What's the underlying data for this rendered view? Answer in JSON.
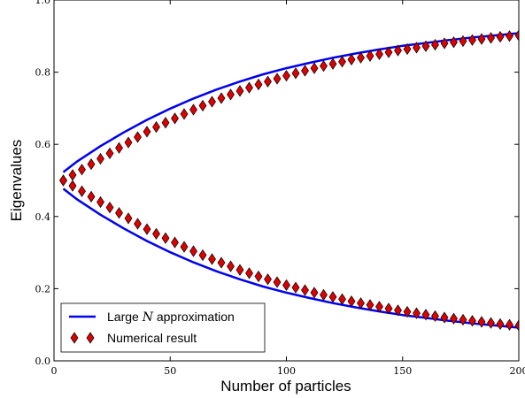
{
  "chart_data": {
    "type": "scatter",
    "title": "",
    "xlabel": "Number of particles",
    "ylabel": "Eigenvalues",
    "xlim": [
      0,
      200
    ],
    "ylim": [
      0.0,
      1.0
    ],
    "x_ticks": [
      "0",
      "50",
      "100",
      "150",
      "200"
    ],
    "y_ticks": [
      "0.0",
      "0.2",
      "0.4",
      "0.6",
      "0.8",
      "1.0"
    ],
    "grid": false,
    "legend_position": "lower-left",
    "legend": {
      "approx_prefix": "Large ",
      "approx_var": "N",
      "approx_suffix": " approximation",
      "numeric": "Numerical result"
    },
    "colors": {
      "line": "#0000ee",
      "marker_fill": "#dd0000",
      "marker_edge": "#000000"
    },
    "series": [
      {
        "name": "Large N approximation (upper)",
        "kind": "line",
        "x": [
          4,
          10,
          20,
          30,
          40,
          50,
          60,
          70,
          80,
          90,
          100,
          110,
          120,
          130,
          140,
          150,
          160,
          170,
          180,
          190,
          200
        ],
        "y": [
          0.523,
          0.553,
          0.595,
          0.633,
          0.668,
          0.699,
          0.727,
          0.752,
          0.774,
          0.794,
          0.811,
          0.826,
          0.84,
          0.852,
          0.863,
          0.873,
          0.881,
          0.889,
          0.896,
          0.902,
          0.908
        ]
      },
      {
        "name": "Large N approximation (lower)",
        "kind": "line",
        "x": [
          4,
          10,
          20,
          30,
          40,
          50,
          60,
          70,
          80,
          90,
          100,
          110,
          120,
          130,
          140,
          150,
          160,
          170,
          180,
          190,
          200
        ],
        "y": [
          0.477,
          0.447,
          0.405,
          0.367,
          0.332,
          0.301,
          0.273,
          0.248,
          0.226,
          0.206,
          0.189,
          0.174,
          0.16,
          0.148,
          0.137,
          0.127,
          0.119,
          0.111,
          0.104,
          0.098,
          0.092
        ]
      },
      {
        "name": "Numerical result (upper)",
        "kind": "marker",
        "x": [
          4,
          8,
          12,
          16,
          20,
          24,
          28,
          32,
          36,
          40,
          44,
          48,
          52,
          56,
          60,
          64,
          68,
          72,
          76,
          80,
          84,
          88,
          92,
          96,
          100,
          104,
          108,
          112,
          116,
          120,
          124,
          128,
          132,
          136,
          140,
          144,
          148,
          152,
          156,
          160,
          164,
          168,
          172,
          176,
          180,
          184,
          188,
          192,
          196,
          200
        ],
        "y": [
          0.5,
          0.515,
          0.53,
          0.545,
          0.56,
          0.575,
          0.59,
          0.605,
          0.62,
          0.635,
          0.648,
          0.66,
          0.672,
          0.684,
          0.696,
          0.707,
          0.718,
          0.728,
          0.738,
          0.748,
          0.757,
          0.766,
          0.774,
          0.782,
          0.79,
          0.797,
          0.804,
          0.811,
          0.817,
          0.823,
          0.829,
          0.835,
          0.84,
          0.845,
          0.85,
          0.855,
          0.86,
          0.864,
          0.868,
          0.872,
          0.876,
          0.88,
          0.883,
          0.886,
          0.889,
          0.892,
          0.895,
          0.898,
          0.9,
          0.902
        ]
      },
      {
        "name": "Numerical result (lower)",
        "kind": "marker",
        "x": [
          4,
          8,
          12,
          16,
          20,
          24,
          28,
          32,
          36,
          40,
          44,
          48,
          52,
          56,
          60,
          64,
          68,
          72,
          76,
          80,
          84,
          88,
          92,
          96,
          100,
          104,
          108,
          112,
          116,
          120,
          124,
          128,
          132,
          136,
          140,
          144,
          148,
          152,
          156,
          160,
          164,
          168,
          172,
          176,
          180,
          184,
          188,
          192,
          196,
          200
        ],
        "y": [
          0.5,
          0.485,
          0.47,
          0.455,
          0.44,
          0.425,
          0.41,
          0.395,
          0.38,
          0.365,
          0.352,
          0.34,
          0.328,
          0.316,
          0.304,
          0.293,
          0.282,
          0.272,
          0.262,
          0.252,
          0.243,
          0.234,
          0.226,
          0.218,
          0.21,
          0.203,
          0.196,
          0.189,
          0.183,
          0.177,
          0.171,
          0.165,
          0.16,
          0.155,
          0.15,
          0.145,
          0.14,
          0.136,
          0.132,
          0.128,
          0.124,
          0.12,
          0.117,
          0.114,
          0.111,
          0.108,
          0.105,
          0.102,
          0.1,
          0.098
        ]
      }
    ]
  }
}
